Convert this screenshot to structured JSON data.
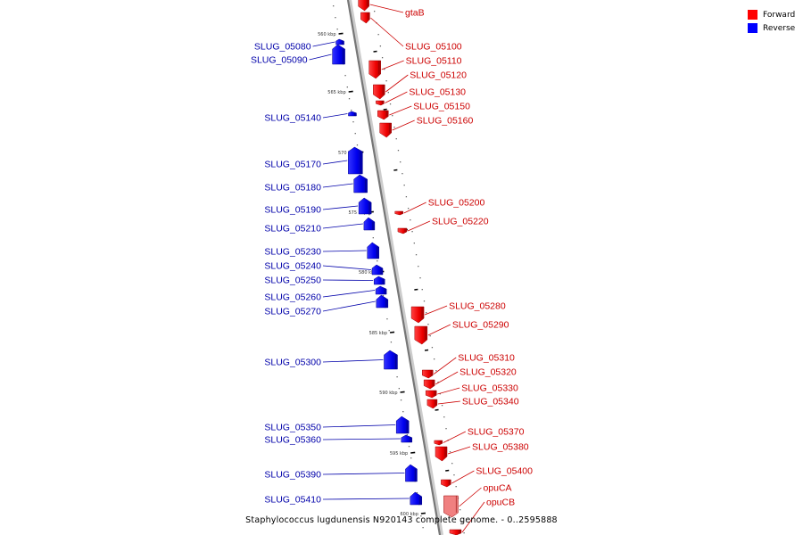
{
  "legend": {
    "forward_label": "Forward",
    "reverse_label": "Reverse",
    "forward_color": "#ff0000",
    "reverse_color": "#0000ff"
  },
  "caption": "Staphylococcus lugdunensis N920143 complete genome. - 0..2595888",
  "colors": {
    "forward_label": "#cc0000",
    "reverse_label": "#0000aa",
    "backbone": "#777777",
    "backbone_shadow": "#cccccc"
  },
  "ticks": [
    "560 kbp",
    "565 kbp",
    "570 kbp",
    "575 kbp",
    "580 kbp",
    "585 kbp",
    "590 kbp",
    "595 kbp",
    "600 kbp"
  ],
  "genes_forward": [
    "gtaB",
    "SLUG_05100",
    "SLUG_05110",
    "SLUG_05120",
    "SLUG_05130",
    "SLUG_05150",
    "SLUG_05160",
    "SLUG_05200",
    "SLUG_05220",
    "SLUG_05280",
    "SLUG_05290",
    "SLUG_05310",
    "SLUG_05320",
    "SLUG_05330",
    "SLUG_05340",
    "SLUG_05370",
    "SLUG_05380",
    "SLUG_05400",
    "opuCA",
    "opuCB"
  ],
  "genes_reverse": [
    "SLUG_05080",
    "SLUG_05090",
    "SLUG_05140",
    "SLUG_05170",
    "SLUG_05180",
    "SLUG_05190",
    "SLUG_05210",
    "SLUG_05230",
    "SLUG_05240",
    "SLUG_05250",
    "SLUG_05260",
    "SLUG_05270",
    "SLUG_05300",
    "SLUG_05350",
    "SLUG_05360",
    "SLUG_05390",
    "SLUG_05410"
  ]
}
